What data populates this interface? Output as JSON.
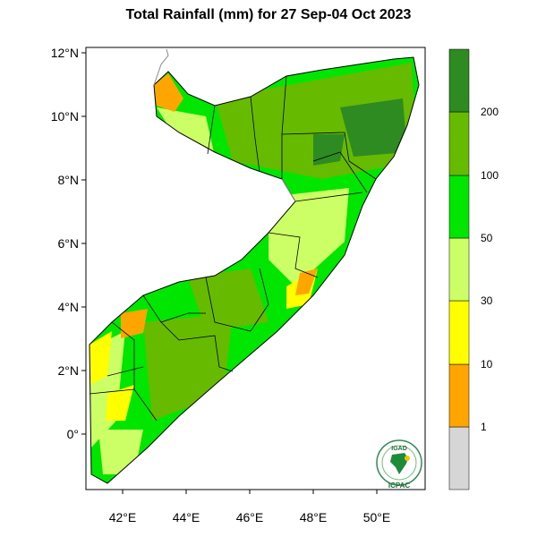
{
  "title": "Total Rainfall (mm) for 27 Sep-04 Oct 2023",
  "map": {
    "lat_labels": [
      "12°N",
      "10°N",
      "8°N",
      "6°N",
      "4°N",
      "2°N",
      "0°"
    ],
    "lon_labels": [
      "42°E",
      "44°E",
      "46°E",
      "48°E",
      "50°E"
    ]
  },
  "legend": {
    "colors": [
      "#d6d6d6",
      "#ffa500",
      "#ffff00",
      "#ccff66",
      "#00e600",
      "#66bb00",
      "#2e8b22"
    ],
    "labels": [
      "1",
      "10",
      "30",
      "50",
      "100",
      "200"
    ]
  },
  "logo": {
    "top_text": "IGAD",
    "bottom_text": "ICPAC"
  }
}
